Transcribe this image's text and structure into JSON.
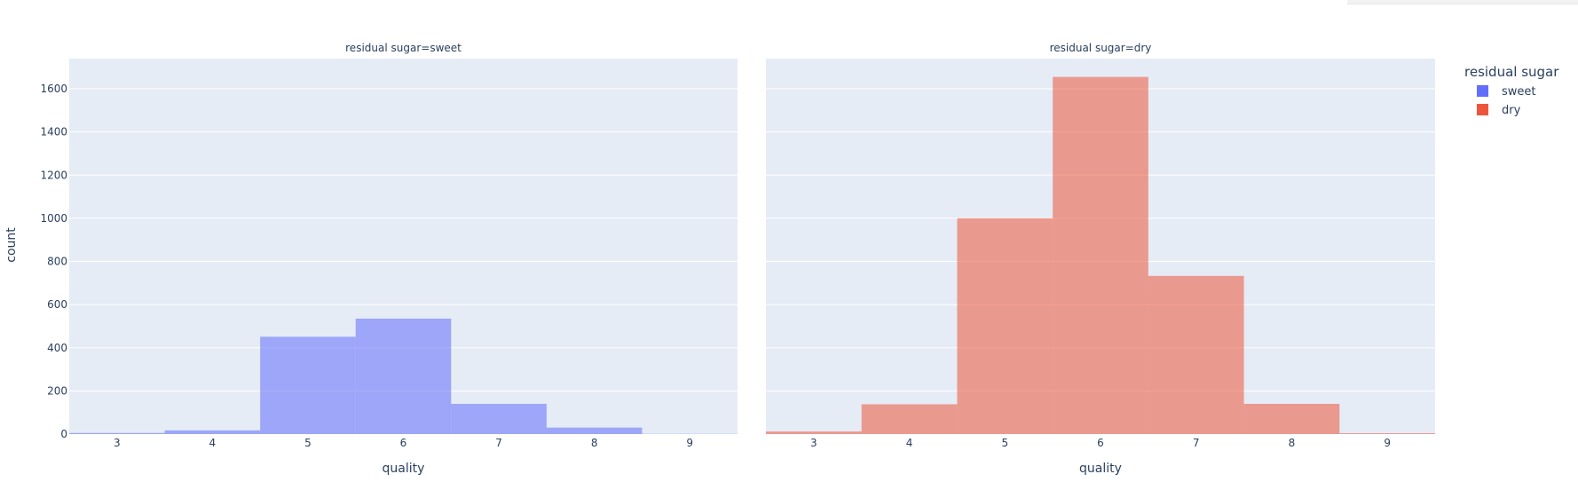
{
  "chart_data": {
    "type": "bar",
    "ylabel": "count",
    "ylim": [
      0,
      1740
    ],
    "y_ticks": [
      0,
      200,
      400,
      600,
      800,
      1000,
      1200,
      1400,
      1600
    ],
    "grid": true,
    "barmode": "overlay",
    "categories": [
      "3",
      "4",
      "5",
      "6",
      "7",
      "8",
      "9"
    ],
    "legend": {
      "title": "residual sugar",
      "position": "top-right",
      "items": [
        {
          "name": "sweet",
          "color": "#636efa"
        },
        {
          "name": "dry",
          "color": "#ef553b"
        }
      ]
    },
    "facets": [
      {
        "title": "residual sugar=sweet",
        "xlabel": "quality",
        "series": [
          {
            "name": "sweet",
            "color": "#636efa",
            "values": [
              5,
              17,
              451,
              535,
              140,
              30,
              1
            ]
          }
        ]
      },
      {
        "title": "residual sugar=dry",
        "xlabel": "quality",
        "series": [
          {
            "name": "dry",
            "color": "#ef553b",
            "values": [
              12,
              138,
              1000,
              1655,
              733,
              140,
              4
            ]
          }
        ]
      }
    ]
  }
}
